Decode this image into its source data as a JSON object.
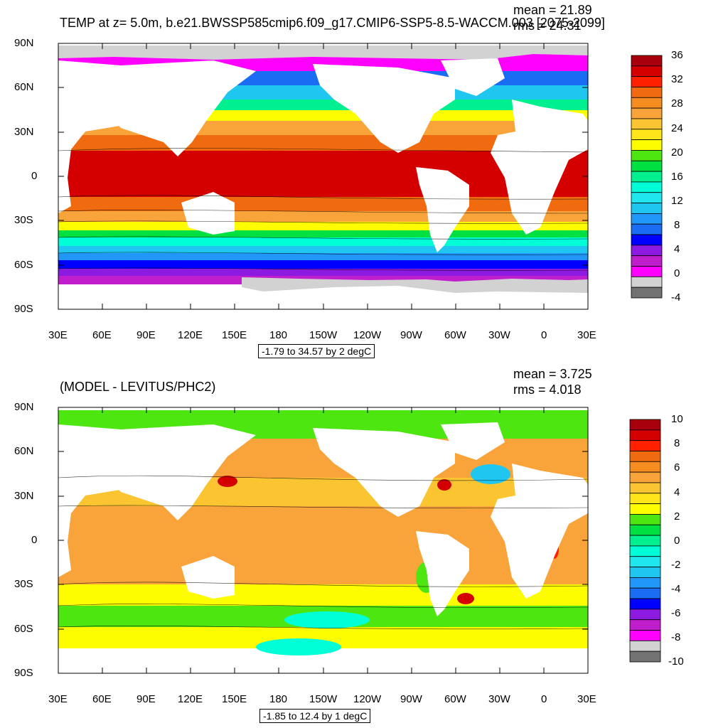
{
  "panels": [
    {
      "title": "TEMP at z=   5.0m, b.e21.BWSSP585cmip6.f09_g17.CMIP6-SSP5-8.5-WACCM.003 [2075-2099]",
      "mean_text": "mean = 21.89",
      "rms_text": "rms = 24.31",
      "range_text": "-1.79 to 34.57 by 2 degC",
      "colorbar": {
        "labels": [
          "36",
          "32",
          "28",
          "24",
          "20",
          "16",
          "12",
          "8",
          "4",
          "0",
          "-4"
        ],
        "colors": [
          "#a8000c",
          "#d40000",
          "#ff2000",
          "#f06a10",
          "#f78c21",
          "#f9a43a",
          "#fbc531",
          "#ffe51a",
          "#fdfd00",
          "#4ee611",
          "#00e040",
          "#00f090",
          "#00ffd7",
          "#20e6ee",
          "#1fc6f0",
          "#2197fa",
          "#1a6cf2",
          "#0000ff",
          "#8c1ae0",
          "#c01ecc",
          "#ff00ff",
          "#d2d2d2",
          "#727272"
        ]
      }
    },
    {
      "title": "(MODEL - LEVITUS/PHC2)",
      "mean_text": "mean = 3.725",
      "rms_text": "rms = 4.018",
      "range_text": "-1.85 to 12.4 by 1 degC",
      "colorbar": {
        "labels": [
          "10",
          "8",
          "6",
          "4",
          "2",
          "0",
          "-2",
          "-4",
          "-6",
          "-8",
          "-10"
        ],
        "colors": [
          "#a8000c",
          "#d40000",
          "#ff2000",
          "#f06a10",
          "#f78c21",
          "#f9a43a",
          "#fbc531",
          "#ffe51a",
          "#fdfd00",
          "#4ee611",
          "#00e040",
          "#00f090",
          "#00ffd7",
          "#20e6ee",
          "#1fc6f0",
          "#2197fa",
          "#1a6cf2",
          "#0000ff",
          "#8c1ae0",
          "#c01ecc",
          "#ff00ff",
          "#d2d2d2",
          "#727272"
        ]
      }
    }
  ],
  "axes": {
    "lat_labels": [
      "90N",
      "60N",
      "30N",
      "0",
      "30S",
      "60S",
      "90S"
    ],
    "lon_labels": [
      "30E",
      "60E",
      "90E",
      "120E",
      "150E",
      "180",
      "150W",
      "120W",
      "90W",
      "60W",
      "30W",
      "0",
      "30E"
    ]
  },
  "map_colors": {
    "land": "#ffffff",
    "ice": "#d2d2d2"
  }
}
